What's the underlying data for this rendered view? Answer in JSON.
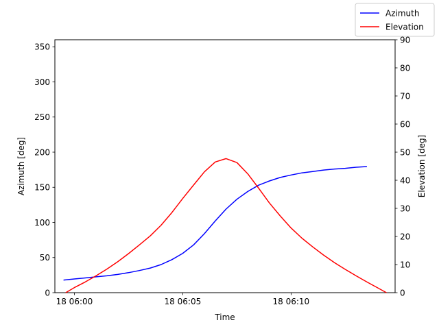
{
  "chart_data": {
    "type": "line",
    "title": "",
    "xlabel": "Time",
    "ylabel_left": "Azimuth [deg]",
    "ylabel_right": "Elevation [deg]",
    "x_unit": "minutes after 06:00 on day 18",
    "xlim": [
      -0.9,
      14.8
    ],
    "ylim_left": [
      0,
      360
    ],
    "ylim_right": [
      0,
      90
    ],
    "x_ticks": [
      {
        "value": 0,
        "label": "18 06:00"
      },
      {
        "value": 5,
        "label": "18 06:05"
      },
      {
        "value": 10,
        "label": "18 06:10"
      }
    ],
    "y_ticks_left": [
      0,
      50,
      100,
      150,
      200,
      250,
      300,
      350
    ],
    "y_ticks_right": [
      0,
      10,
      20,
      30,
      40,
      50,
      60,
      70,
      80,
      90
    ],
    "legend_position": "top-right",
    "grid": false,
    "series": [
      {
        "name": "Azimuth",
        "axis": "left",
        "color": "#0000ff",
        "points": [
          [
            -0.5,
            18
          ],
          [
            0,
            19.5
          ],
          [
            0.5,
            21
          ],
          [
            1,
            22.5
          ],
          [
            1.5,
            24
          ],
          [
            2,
            26
          ],
          [
            2.5,
            28.5
          ],
          [
            3,
            31.5
          ],
          [
            3.5,
            35
          ],
          [
            4,
            40
          ],
          [
            4.5,
            47
          ],
          [
            5,
            56
          ],
          [
            5.5,
            68
          ],
          [
            6,
            84
          ],
          [
            6.5,
            102
          ],
          [
            7,
            119
          ],
          [
            7.5,
            133
          ],
          [
            8,
            144
          ],
          [
            8.5,
            153
          ],
          [
            9,
            159
          ],
          [
            9.5,
            164
          ],
          [
            10,
            167.5
          ],
          [
            10.5,
            170.5
          ],
          [
            11,
            172.5
          ],
          [
            11.5,
            174.5
          ],
          [
            12,
            176
          ],
          [
            12.5,
            177
          ],
          [
            13,
            178.5
          ],
          [
            13.5,
            179.5
          ]
        ]
      },
      {
        "name": "Elevation",
        "axis": "right",
        "color": "#ff0000",
        "points": [
          [
            -0.4,
            0
          ],
          [
            0,
            1.8
          ],
          [
            0.5,
            3.8
          ],
          [
            1,
            6
          ],
          [
            1.5,
            8.4
          ],
          [
            2,
            11
          ],
          [
            2.5,
            13.9
          ],
          [
            3,
            17
          ],
          [
            3.5,
            20.2
          ],
          [
            4,
            24
          ],
          [
            4.5,
            28.5
          ],
          [
            5,
            33.5
          ],
          [
            5.5,
            38.3
          ],
          [
            6,
            43
          ],
          [
            6.5,
            46.5
          ],
          [
            7,
            47.7
          ],
          [
            7.5,
            46.3
          ],
          [
            8,
            42.3
          ],
          [
            8.5,
            37.2
          ],
          [
            9,
            31.9
          ],
          [
            9.5,
            27.3
          ],
          [
            10,
            23
          ],
          [
            10.5,
            19.4
          ],
          [
            11,
            16.3
          ],
          [
            11.5,
            13.4
          ],
          [
            12,
            10.7
          ],
          [
            12.5,
            8.3
          ],
          [
            13,
            6
          ],
          [
            13.5,
            3.8
          ],
          [
            14,
            1.7
          ],
          [
            14.4,
            0
          ]
        ]
      }
    ]
  }
}
